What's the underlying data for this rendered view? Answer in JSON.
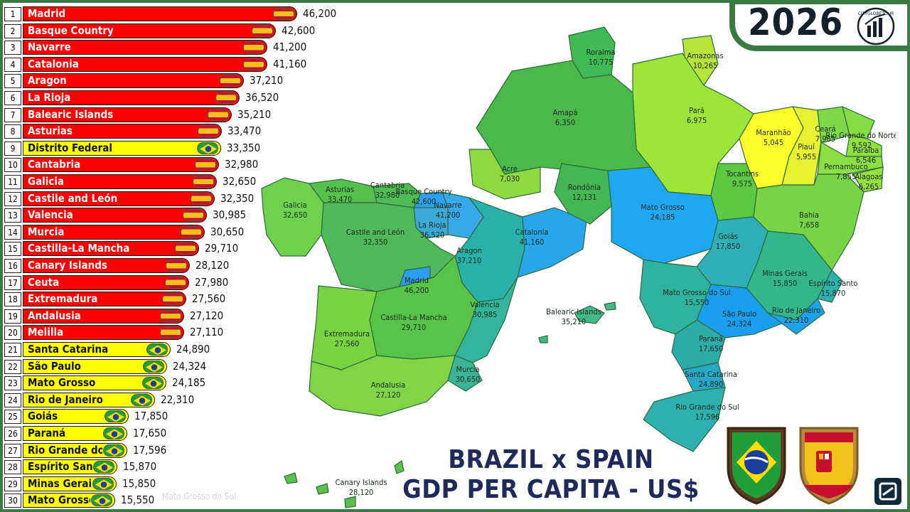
{
  "header": {
    "year": "2026",
    "logo_icon": "cityglobe-logo",
    "logo_text": "CITYGLOBETOUR"
  },
  "title": {
    "line1": "BRAZIL x SPAIN",
    "line2": "GDP PER CAPITA - US$"
  },
  "watermark": "Mato Grosso do Sul",
  "colors": {
    "spain_bar": "#ff0000",
    "brazil_bar": "#ffff00",
    "frame": "#3c7a45",
    "title": "#1f2a5a"
  },
  "chart_data": {
    "type": "bar",
    "orientation": "horizontal",
    "unit": "US$",
    "categories": [
      "Madrid",
      "Basque Country",
      "Navarre",
      "Catalonia",
      "Aragon",
      "La Rioja",
      "Balearic Islands",
      "Asturias",
      "Distrito Federal",
      "Cantabria",
      "Galicia",
      "Castile and León",
      "Valencia",
      "Murcia",
      "Castilla-La Mancha",
      "Canary Islands",
      "Ceuta",
      "Extremadura",
      "Andalusia",
      "Melilla",
      "Santa Catarina",
      "São Paulo",
      "Mato Grosso",
      "Rio de Janeiro",
      "Goiás",
      "Paraná",
      "Rio Grande do Sul",
      "Espírito Santo",
      "Minas Gerais",
      "Mato Grosso do Sul"
    ],
    "bar_labels": [
      "Madrid",
      "Basque Country",
      "Navarre",
      "Catalonia",
      "Aragon",
      "La Rioja",
      "Balearic Islands",
      "Asturias",
      "Distrito Federal",
      "Cantabria",
      "Galicia",
      "Castile and León",
      "Valencia",
      "Murcia",
      "Castilla-La Mancha",
      "Canary Islands",
      "Ceuta",
      "Extremadura",
      "Andalusia",
      "Melilla",
      "Santa Catarina",
      "São Paulo",
      "Mato Grosso",
      "Rio de Janeiro",
      "Goiás",
      "Paraná",
      "Rio Grande do Su",
      "Espírito Santo",
      "Minas Gerais",
      "Mato Grosso d"
    ],
    "values": [
      46200,
      42600,
      41200,
      41160,
      37210,
      36520,
      35210,
      33470,
      33350,
      32980,
      32650,
      32350,
      30985,
      30650,
      29710,
      28120,
      27980,
      27560,
      27120,
      27110,
      24890,
      24324,
      24185,
      22310,
      17850,
      17650,
      17596,
      15870,
      15850,
      15550
    ],
    "value_labels": [
      "46,200",
      "42,600",
      "41,200",
      "41,160",
      "37,210",
      "36,520",
      "35,210",
      "33,470",
      "33,350",
      "32,980",
      "32,650",
      "32,350",
      "30,985",
      "30,650",
      "29,710",
      "28,120",
      "27,980",
      "27,560",
      "27,120",
      "27,110",
      "24,890",
      "24,324",
      "24,185",
      "22,310",
      "17,850",
      "17,650",
      "17,596",
      "15,870",
      "15,850",
      "15,550"
    ],
    "country": [
      "ES",
      "ES",
      "ES",
      "ES",
      "ES",
      "ES",
      "ES",
      "ES",
      "BR",
      "ES",
      "ES",
      "ES",
      "ES",
      "ES",
      "ES",
      "ES",
      "ES",
      "ES",
      "ES",
      "ES",
      "BR",
      "BR",
      "BR",
      "BR",
      "BR",
      "BR",
      "BR",
      "BR",
      "BR",
      "BR"
    ],
    "ranks": [
      "1",
      "2",
      "3",
      "4",
      "5",
      "6",
      "7",
      "8",
      "9",
      "10",
      "11",
      "12",
      "13",
      "14",
      "15",
      "16",
      "17",
      "18",
      "19",
      "20",
      "21",
      "22",
      "23",
      "24",
      "25",
      "26",
      "27",
      "28",
      "29",
      "30"
    ]
  },
  "map": {
    "spain": [
      {
        "name": "Galicia",
        "value": "32,650"
      },
      {
        "name": "Asturias",
        "value": "33,470"
      },
      {
        "name": "Cantabria",
        "value": "32,980"
      },
      {
        "name": "Basque Country",
        "value": "42,600"
      },
      {
        "name": "Navarre",
        "value": "41,200"
      },
      {
        "name": "La Rioja",
        "value": "36,520"
      },
      {
        "name": "Castile and León",
        "value": "32,350"
      },
      {
        "name": "Aragon",
        "value": "37,210"
      },
      {
        "name": "Catalonia",
        "value": "41,160"
      },
      {
        "name": "Madrid",
        "value": "46,200"
      },
      {
        "name": "Extremadura",
        "value": "27,560"
      },
      {
        "name": "Castilla-La Mancha",
        "value": "29,710"
      },
      {
        "name": "Valencia",
        "value": "30,985"
      },
      {
        "name": "Murcia",
        "value": "30,650"
      },
      {
        "name": "Andalusia",
        "value": "27,120"
      },
      {
        "name": "Balearic Islands",
        "value": "35,210"
      },
      {
        "name": "Canary Islands",
        "value": "28,120"
      }
    ],
    "brazil": [
      {
        "name": "Roraima",
        "value": "10,775"
      },
      {
        "name": "Amapá",
        "value": "6,350"
      },
      {
        "name": "Amazonas",
        "value": "10,265"
      },
      {
        "name": "Pará",
        "value": "6,975"
      },
      {
        "name": "Maranhão",
        "value": "5,045"
      },
      {
        "name": "Piauí",
        "value": "5,955"
      },
      {
        "name": "Ceará",
        "value": "7,965"
      },
      {
        "name": "Rio Grande do Norte",
        "value": "9,592"
      },
      {
        "name": "Paraíba",
        "value": "6,546"
      },
      {
        "name": "Pernambuco",
        "value": "7,855"
      },
      {
        "name": "Alagoas",
        "value": "6,265"
      },
      {
        "name": "Acre",
        "value": "7,030"
      },
      {
        "name": "Rondônia",
        "value": "12,131"
      },
      {
        "name": "Tocantins",
        "value": "9,575"
      },
      {
        "name": "Mato Grosso",
        "value": "24,185"
      },
      {
        "name": "Bahia",
        "value": "7,658"
      },
      {
        "name": "Goiás",
        "value": "17,850"
      },
      {
        "name": "Minas Gerais",
        "value": "15,850"
      },
      {
        "name": "Espírito Santo",
        "value": "15,870"
      },
      {
        "name": "Mato Grosso do Sul",
        "value": "15,550"
      },
      {
        "name": "São Paulo",
        "value": "24,324"
      },
      {
        "name": "Rio de Janeiro",
        "value": "22,310"
      },
      {
        "name": "Paraná",
        "value": "17,650"
      },
      {
        "name": "Santa Catarina",
        "value": "24,890"
      },
      {
        "name": "Rio Grande do Sul",
        "value": "17,596"
      }
    ]
  }
}
